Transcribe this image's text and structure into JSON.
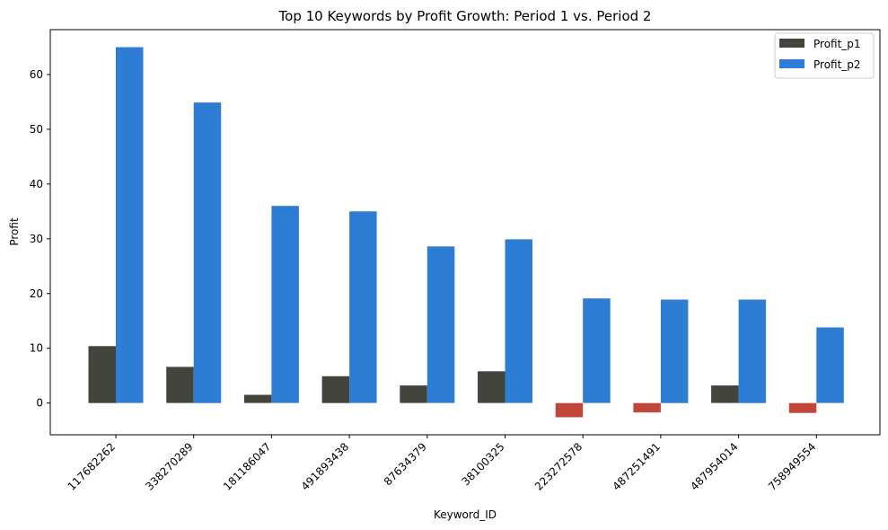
{
  "chart_data": {
    "type": "bar",
    "title": "Top 10 Keywords by Profit Growth: Period 1 vs. Period 2",
    "xlabel": "Keyword_ID",
    "ylabel": "Profit",
    "categories": [
      "117682262",
      "338270289",
      "181186047",
      "491893438",
      "87634379",
      "38100325",
      "223272578",
      "487251491",
      "487954014",
      "758949554"
    ],
    "series": [
      {
        "name": "Profit_p1",
        "color": "#41453b",
        "negative_color": "#c0473a",
        "values": [
          10.4,
          6.6,
          1.5,
          4.9,
          3.2,
          5.8,
          -2.6,
          -1.7,
          3.2,
          -1.8
        ]
      },
      {
        "name": "Profit_p2",
        "color": "#2e7dd5",
        "values": [
          65.0,
          54.9,
          36.0,
          35.0,
          28.6,
          29.9,
          19.1,
          18.9,
          18.9,
          13.8
        ]
      }
    ],
    "ylim": [
      -5.8,
      68.2
    ],
    "yticks": [
      0,
      10,
      20,
      30,
      40,
      50,
      60
    ],
    "grid": false,
    "legend": "top-right"
  }
}
